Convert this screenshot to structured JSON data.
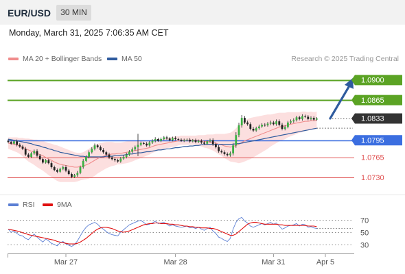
{
  "header": {
    "symbol": "EUR/USD",
    "timeframe": "30 MIN"
  },
  "datetime": "Monday, March 31, 2025 7:06:35 AM CET",
  "legend": {
    "bollinger": {
      "label": "MA 20 + Bollinger Bands",
      "color": "#f08c8c"
    },
    "ma50": {
      "label": "MA 50",
      "color": "#2f5b9e"
    }
  },
  "credit": "Research © 2025 Trading Central",
  "rsi_legend": {
    "rsi": {
      "label": "RSI",
      "color": "#5b7fd4"
    },
    "ma9": {
      "label": "9MA",
      "color": "#e01010"
    }
  },
  "chart_data": [
    {
      "type": "candlestick",
      "ylim": [
        1.0705,
        1.0925
      ],
      "price_levels": [
        {
          "value": 1.09,
          "label": "1.0900",
          "kind": "target",
          "color": "#5ba324"
        },
        {
          "value": 1.0865,
          "label": "1.0865",
          "kind": "target",
          "color": "#5ba324"
        },
        {
          "value": 1.0833,
          "label": "1.0833",
          "kind": "last",
          "color": "#333333"
        },
        {
          "value": 1.0795,
          "label": "1.0795",
          "kind": "pivot",
          "color": "#3b6ee0"
        },
        {
          "value": 1.0765,
          "label": "1.0765",
          "kind": "support",
          "color": "#e05050"
        },
        {
          "value": 1.073,
          "label": "1.0730",
          "kind": "support",
          "color": "#e05050"
        }
      ],
      "arrow": {
        "from": 1.0833,
        "to": 1.09,
        "direction": "up",
        "color": "#2f5b9e"
      },
      "candle_colors": {
        "up": "#3cb043",
        "down": "#222222"
      },
      "closes": [
        1.0792,
        1.0789,
        1.0793,
        1.0787,
        1.0784,
        1.078,
        1.077,
        1.0766,
        1.0772,
        1.0776,
        1.0768,
        1.0762,
        1.0756,
        1.076,
        1.0755,
        1.0748,
        1.0743,
        1.074,
        1.0745,
        1.0748,
        1.0742,
        1.0736,
        1.0731,
        1.0734,
        1.0738,
        1.0748,
        1.0759,
        1.0766,
        1.0774,
        1.078,
        1.0786,
        1.0783,
        1.0778,
        1.0774,
        1.077,
        1.0765,
        1.0762,
        1.076,
        1.0758,
        1.0763,
        1.0766,
        1.077,
        1.0775,
        1.0779,
        1.0783,
        1.0787,
        1.079,
        1.0789,
        1.0786,
        1.0791,
        1.0794,
        1.0797,
        1.0794,
        1.0797,
        1.08,
        1.0798,
        1.0795,
        1.0799,
        1.0797,
        1.0796,
        1.0794,
        1.0795,
        1.0796,
        1.0793,
        1.0795,
        1.0792,
        1.0794,
        1.0791,
        1.0789,
        1.0793,
        1.0795,
        1.0788,
        1.0783,
        1.0776,
        1.0774,
        1.0771,
        1.0769,
        1.0772,
        1.0786,
        1.0804,
        1.0821,
        1.0834,
        1.0826,
        1.0823,
        1.0815,
        1.0812,
        1.0816,
        1.0819,
        1.0822,
        1.0821,
        1.0824,
        1.0826,
        1.0823,
        1.0828,
        1.0822,
        1.0815,
        1.0818,
        1.0826,
        1.0828,
        1.083,
        1.0835,
        1.0832,
        1.0837,
        1.0836,
        1.0832,
        1.0834,
        1.0831,
        1.0833
      ],
      "volatility": [
        0.0005,
        0.0004,
        0.0004,
        0.0006,
        0.0005,
        0.0005,
        0.0006,
        0.0005,
        0.0004,
        0.0005,
        0.0006,
        0.0005,
        0.0005,
        0.0004,
        0.0005,
        0.0006,
        0.0005,
        0.0005,
        0.0004,
        0.0005,
        0.0006,
        0.0005,
        0.0005,
        0.0004,
        0.0006,
        0.0005,
        0.0006,
        0.0005,
        0.0006,
        0.0005,
        0.0006,
        0.0005,
        0.0005,
        0.0006,
        0.0005,
        0.0006,
        0.0005,
        0.0006,
        0.0005,
        0.0005,
        0.0005,
        0.0006,
        0.0005,
        0.0006,
        0.0005,
        0.0035,
        0.0005,
        0.0004,
        0.0005,
        0.0005,
        0.0005,
        0.0006,
        0.0004,
        0.0005,
        0.0004,
        0.0005,
        0.0004,
        0.0004,
        0.0005,
        0.0004,
        0.0004,
        0.0005,
        0.0004,
        0.0005,
        0.0004,
        0.0005,
        0.0004,
        0.0005,
        0.0005,
        0.0004,
        0.0005,
        0.0006,
        0.0005,
        0.0006,
        0.0005,
        0.0006,
        0.0005,
        0.0006,
        0.0008,
        0.0009,
        0.0008,
        0.0009,
        0.0006,
        0.0006,
        0.0006,
        0.0006,
        0.0005,
        0.0006,
        0.0005,
        0.0005,
        0.0005,
        0.0006,
        0.0005,
        0.0006,
        0.0006,
        0.0006,
        0.0006,
        0.0005,
        0.0006,
        0.0006,
        0.0005,
        0.0005,
        0.0006,
        0.0005,
        0.0005,
        0.0005,
        0.0005,
        0.0004
      ],
      "ma20": [
        1.079,
        1.0789,
        1.0788,
        1.0787,
        1.0785,
        1.0783,
        1.078,
        1.0778,
        1.0776,
        1.0774,
        1.0772,
        1.077,
        1.0768,
        1.0765,
        1.0762,
        1.076,
        1.0757,
        1.0755,
        1.0753,
        1.0752,
        1.0751,
        1.075,
        1.0749,
        1.0748,
        1.0748,
        1.0749,
        1.075,
        1.0752,
        1.0754,
        1.0757,
        1.076,
        1.0763,
        1.0765,
        1.0767,
        1.0769,
        1.077,
        1.0771,
        1.0771,
        1.0772,
        1.0772,
        1.0773,
        1.0774,
        1.0775,
        1.0776,
        1.0777,
        1.0778,
        1.0779,
        1.078,
        1.0781,
        1.0782,
        1.0784,
        1.0786,
        1.0787,
        1.0788,
        1.0789,
        1.079,
        1.0791,
        1.0792,
        1.0793,
        1.0794,
        1.0795,
        1.0795,
        1.0795,
        1.0795,
        1.0795,
        1.0795,
        1.0795,
        1.0794,
        1.0793,
        1.0793,
        1.0792,
        1.0791,
        1.079,
        1.0788,
        1.0787,
        1.0785,
        1.0784,
        1.0783,
        1.0784,
        1.0786,
        1.0788,
        1.0791,
        1.0794,
        1.0796,
        1.0798,
        1.08,
        1.0802,
        1.0804,
        1.0806,
        1.0808,
        1.081,
        1.0812,
        1.0814,
        1.0816,
        1.0818,
        1.0819,
        1.082,
        1.0822,
        1.0823,
        1.0824,
        1.0825,
        1.0826,
        1.0827,
        1.0828,
        1.0828,
        1.0829,
        1.0829,
        1.083
      ],
      "bb_width": [
        0.001,
        0.0011,
        0.0012,
        0.0013,
        0.0014,
        0.0016,
        0.0018,
        0.002,
        0.0021,
        0.0022,
        0.0024,
        0.0025,
        0.0026,
        0.0027,
        0.0028,
        0.0029,
        0.003,
        0.0031,
        0.0031,
        0.003,
        0.0029,
        0.0028,
        0.0027,
        0.0026,
        0.0025,
        0.0024,
        0.0024,
        0.0025,
        0.0026,
        0.0027,
        0.0027,
        0.0026,
        0.0025,
        0.0024,
        0.0023,
        0.0022,
        0.0021,
        0.002,
        0.0019,
        0.0019,
        0.0019,
        0.0019,
        0.0019,
        0.0018,
        0.0017,
        0.0016,
        0.0015,
        0.0014,
        0.0013,
        0.0012,
        0.0011,
        0.0011,
        0.001,
        0.0009,
        0.0009,
        0.0009,
        0.0009,
        0.0009,
        0.0009,
        0.0008,
        0.0008,
        0.0008,
        0.0008,
        0.0008,
        0.0008,
        0.0008,
        0.0009,
        0.001,
        0.0011,
        0.0012,
        0.0013,
        0.0014,
        0.0016,
        0.0018,
        0.0019,
        0.0021,
        0.0023,
        0.0025,
        0.0027,
        0.003,
        0.0033,
        0.0035,
        0.0036,
        0.0036,
        0.0036,
        0.0035,
        0.0034,
        0.0033,
        0.0032,
        0.0031,
        0.003,
        0.0028,
        0.0027,
        0.0026,
        0.0025,
        0.0024,
        0.0023,
        0.0022,
        0.0021,
        0.002,
        0.0019,
        0.0018,
        0.0018,
        0.0017,
        0.0016,
        0.0016,
        0.0015,
        0.0015
      ],
      "ma50": [
        1.0797,
        1.0796,
        1.0795,
        1.0794,
        1.0793,
        1.0792,
        1.0791,
        1.079,
        1.0789,
        1.0787,
        1.0786,
        1.0785,
        1.0783,
        1.0782,
        1.078,
        1.0779,
        1.0777,
        1.0776,
        1.0774,
        1.0773,
        1.0772,
        1.0771,
        1.077,
        1.0769,
        1.0768,
        1.0767,
        1.0767,
        1.0766,
        1.0766,
        1.0766,
        1.0766,
        1.0766,
        1.0766,
        1.0766,
        1.0767,
        1.0767,
        1.0767,
        1.0768,
        1.0768,
        1.0769,
        1.0769,
        1.077,
        1.0771,
        1.0771,
        1.0772,
        1.0773,
        1.0773,
        1.0774,
        1.0775,
        1.0775,
        1.0776,
        1.0777,
        1.0778,
        1.0778,
        1.0779,
        1.078,
        1.078,
        1.0781,
        1.0782,
        1.0782,
        1.0783,
        1.0784,
        1.0784,
        1.0785,
        1.0785,
        1.0786,
        1.0786,
        1.0787,
        1.0787,
        1.0788,
        1.0788,
        1.0788,
        1.0788,
        1.0788,
        1.0788,
        1.0788,
        1.0788,
        1.0788,
        1.0788,
        1.0789,
        1.0789,
        1.079,
        1.0791,
        1.0792,
        1.0793,
        1.0794,
        1.0795,
        1.0796,
        1.0797,
        1.0798,
        1.0799,
        1.08,
        1.0801,
        1.0802,
        1.0803,
        1.0804,
        1.0805,
        1.0806,
        1.0807,
        1.0808,
        1.0809,
        1.081,
        1.0811,
        1.0812,
        1.0813,
        1.0814,
        1.0815,
        1.0816
      ]
    },
    {
      "type": "line",
      "ylim": [
        20,
        80
      ],
      "ticks": [
        {
          "value": 70,
          "label": "70"
        },
        {
          "value": 50,
          "label": "50"
        },
        {
          "value": 30,
          "label": "30"
        }
      ],
      "last_rsi": 56,
      "x_labels": [
        {
          "index": 20,
          "label": "Mar 27"
        },
        {
          "index": 58,
          "label": "Mar 28"
        },
        {
          "index": 92,
          "label": "Mar 31"
        },
        {
          "index": 110,
          "label": "Apr 5"
        }
      ],
      "series": [
        {
          "name": "RSI",
          "color": "#5b7fd4",
          "values": [
            55,
            50,
            52,
            48,
            45,
            44,
            40,
            38,
            43,
            47,
            42,
            38,
            34,
            39,
            36,
            32,
            30,
            28,
            33,
            35,
            31,
            29,
            27,
            30,
            36,
            44,
            52,
            58,
            62,
            64,
            66,
            63,
            58,
            55,
            51,
            48,
            46,
            45,
            44,
            50,
            54,
            58,
            62,
            64,
            66,
            68,
            69,
            66,
            62,
            63,
            65,
            68,
            64,
            65,
            66,
            63,
            60,
            62,
            60,
            59,
            58,
            59,
            60,
            57,
            58,
            56,
            58,
            55,
            53,
            56,
            58,
            52,
            48,
            42,
            40,
            37,
            35,
            40,
            55,
            66,
            72,
            74,
            68,
            65,
            60,
            58,
            60,
            62,
            64,
            62,
            64,
            66,
            63,
            65,
            60,
            55,
            57,
            60,
            61,
            62,
            64,
            60,
            63,
            62,
            58,
            59,
            57,
            56
          ]
        },
        {
          "name": "9MA",
          "color": "#e01010",
          "values": [
            55,
            54,
            53,
            52,
            51,
            49,
            48,
            46,
            45,
            44,
            43,
            42,
            41,
            40,
            39,
            38,
            37,
            35,
            34,
            33,
            32,
            31,
            31,
            31,
            32,
            34,
            37,
            40,
            44,
            48,
            52,
            55,
            57,
            58,
            58,
            57,
            56,
            54,
            52,
            51,
            50,
            51,
            52,
            54,
            56,
            58,
            60,
            62,
            63,
            64,
            64,
            65,
            65,
            64,
            64,
            64,
            63,
            63,
            62,
            62,
            61,
            60,
            60,
            59,
            59,
            58,
            58,
            57,
            57,
            57,
            56,
            56,
            55,
            53,
            51,
            49,
            47,
            45,
            45,
            47,
            51,
            55,
            59,
            63,
            65,
            66,
            66,
            65,
            64,
            63,
            63,
            63,
            63,
            63,
            62,
            62,
            61,
            61,
            61,
            61,
            61,
            61,
            61,
            61,
            60,
            60,
            60,
            59
          ]
        }
      ]
    }
  ]
}
